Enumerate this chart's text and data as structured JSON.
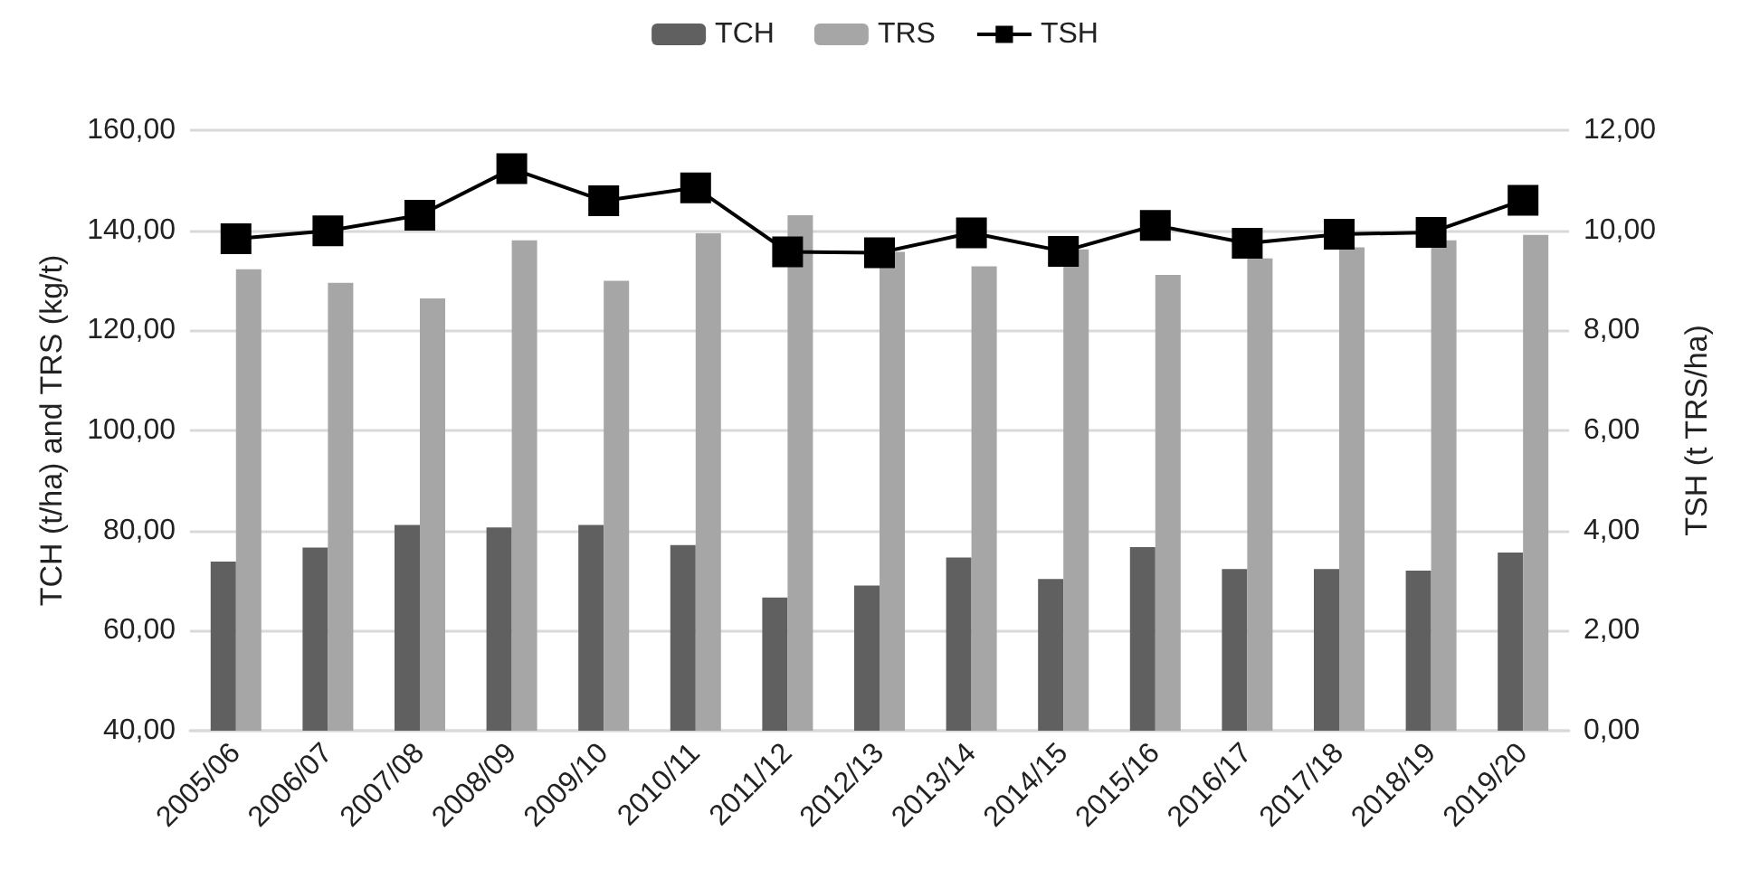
{
  "chart_data": {
    "type": "bar",
    "categories": [
      "2005/06",
      "2006/07",
      "2007/08",
      "2008/09",
      "2009/10",
      "2010/11",
      "2011/12",
      "2012/13",
      "2013/14",
      "2014/15",
      "2015/16",
      "2016/17",
      "2017/18",
      "2018/19",
      "2019/20"
    ],
    "series": [
      {
        "name": "TCH",
        "color": "#606060",
        "values": [
          73.8,
          76.6,
          81.1,
          80.6,
          81.1,
          77.1,
          66.6,
          69.0,
          74.6,
          70.3,
          76.7,
          72.3,
          72.3,
          72.0,
          75.6
        ]
      },
      {
        "name": "TRS",
        "color": "#a6a6a6",
        "values": [
          132.2,
          129.5,
          126.4,
          138.0,
          129.9,
          139.4,
          143.0,
          135.7,
          132.8,
          136.2,
          131.1,
          134.4,
          136.6,
          138.0,
          139.1
        ]
      },
      {
        "name": "TSH",
        "type": "line",
        "axis": "y2",
        "color": "#000000",
        "marker": "square",
        "values": [
          9.83,
          9.99,
          10.3,
          11.23,
          10.59,
          10.85,
          9.57,
          9.55,
          9.95,
          9.58,
          10.1,
          9.74,
          9.92,
          9.96,
          10.6
        ]
      }
    ],
    "ylabel": "TCH (t/ha) and TRS (kg/t)",
    "y2label": "TSH (t TRS/ha)",
    "ylim": [
      40,
      160
    ],
    "yticks": [
      {
        "value": 40,
        "label": "40,00"
      },
      {
        "value": 60,
        "label": "60,00"
      },
      {
        "value": 80,
        "label": "80,00"
      },
      {
        "value": 100,
        "label": "100,00"
      },
      {
        "value": 120,
        "label": "120,00"
      },
      {
        "value": 140,
        "label": "140,00"
      },
      {
        "value": 160,
        "label": "160,00"
      }
    ],
    "y2lim": [
      0,
      12
    ],
    "y2ticks": [
      {
        "value": 0,
        "label": "0,00"
      },
      {
        "value": 2,
        "label": "2,00"
      },
      {
        "value": 4,
        "label": "4,00"
      },
      {
        "value": 6,
        "label": "6,00"
      },
      {
        "value": 8,
        "label": "8,00"
      },
      {
        "value": 10,
        "label": "10,00"
      },
      {
        "value": 12,
        "label": "12,00"
      }
    ],
    "grid": "y",
    "legend": "top",
    "line_style": "solid"
  }
}
